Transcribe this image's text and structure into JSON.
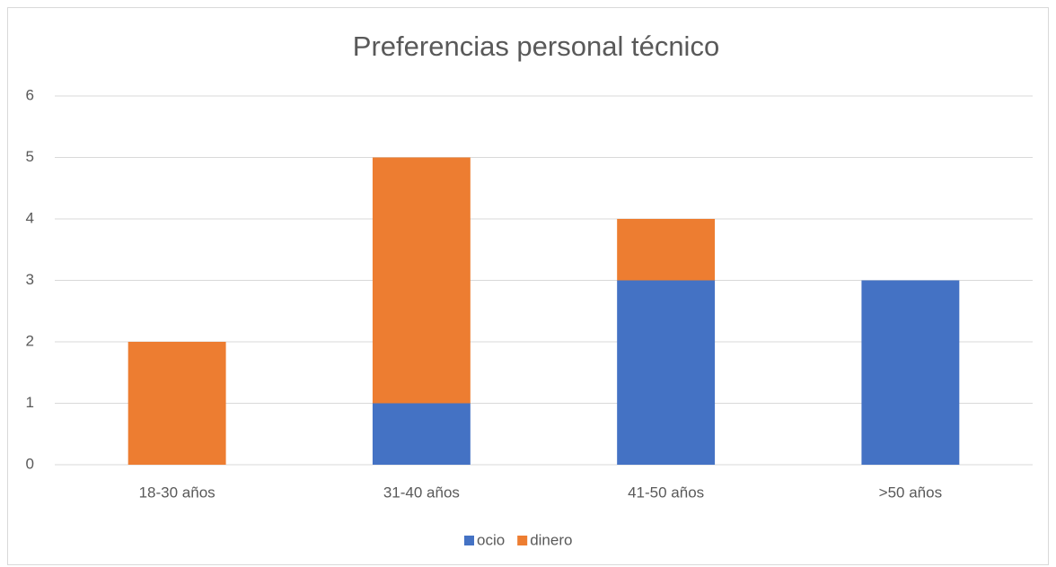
{
  "chart_data": {
    "type": "stacked_bar",
    "title": "Preferencias personal técnico",
    "categories": [
      "18-30 años",
      "31-40 años",
      "41-50 años",
      ">50 años"
    ],
    "series": [
      {
        "name": "ocio",
        "color": "#4472c4",
        "values": [
          0,
          1,
          3,
          3
        ]
      },
      {
        "name": "dinero",
        "color": "#ed7d31",
        "values": [
          2,
          4,
          1,
          0
        ]
      }
    ],
    "ylim": [
      0,
      6
    ],
    "yticks": [
      0,
      1,
      2,
      3,
      4,
      5,
      6
    ],
    "grid": true,
    "legend": "bottom"
  }
}
